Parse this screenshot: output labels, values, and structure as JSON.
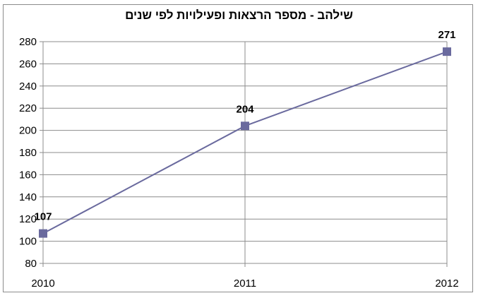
{
  "chart_data": {
    "type": "line",
    "title": "שילהב - מספר הרצאות ופעילויות לפי שנים",
    "x": [
      "2010",
      "2011",
      "2012"
    ],
    "series": [
      {
        "values": [
          107,
          204,
          271
        ],
        "color": "#6a6a9e"
      }
    ],
    "data_labels": [
      "107",
      "204",
      "271"
    ],
    "ylim": [
      80,
      280
    ],
    "yticks": [
      80,
      100,
      120,
      140,
      160,
      180,
      200,
      220,
      240,
      260,
      280
    ],
    "grid": true,
    "legend": "none",
    "gridline_color": "#8c8c8c"
  }
}
